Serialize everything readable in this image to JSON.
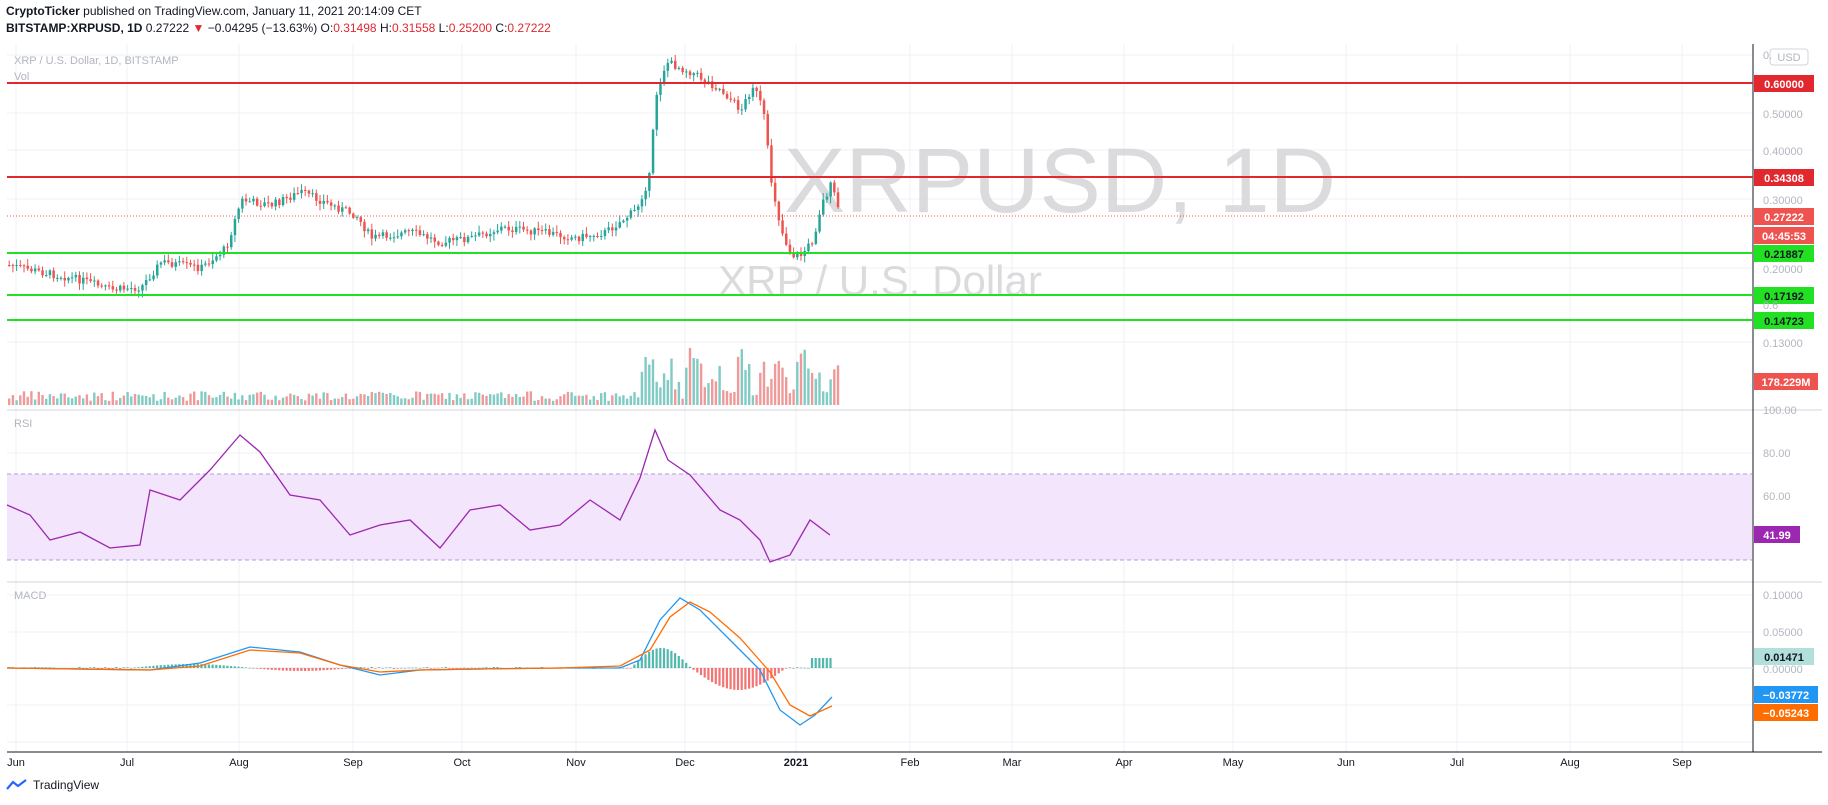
{
  "header": {
    "author": "CryptoTicker",
    "published": "published on TradingView.com, January 11, 2021 20:14:09 CET",
    "symbol": "BITSTAMP:XRPUSD, 1D",
    "last": "0.27222",
    "arrow": "▼",
    "change": "−0.04295 (−13.63%)",
    "o_label": "O:",
    "o": "0.31498",
    "h_label": "H:",
    "h": "0.31558",
    "l_label": "L:",
    "l": "0.25200",
    "c_label": "C:",
    "c": "0.27222"
  },
  "pane_main": {
    "legend": "XRP / U.S. Dollar, 1D, BITSTAMP",
    "vol_label": "Vol",
    "watermark": "XRPUSD, 1D",
    "watermark_sub": "XRP / U.S. Dollar",
    "currency_button": "USD",
    "axis_ticks": [
      "0.50000",
      "0.40000",
      "0.30000",
      "0.20000",
      "0.13000",
      "0.6",
      "0.18000"
    ],
    "top_tick": "0.",
    "price_badges": [
      {
        "label": "0.60000",
        "color": "#e0282e",
        "level": 0.6
      },
      {
        "label": "0.34308",
        "color": "#e0282e",
        "level": 0.34308
      },
      {
        "label": "0.27222",
        "color": "#ef5350",
        "level": 0.27222
      },
      {
        "label": "04:45:53",
        "color": "#ef5350"
      },
      {
        "label": "0.21887",
        "color": "#22e122",
        "level": 0.21887
      },
      {
        "label": "0.17192",
        "color": "#22e122",
        "level": 0.17192
      },
      {
        "label": "0.14723",
        "color": "#22e122",
        "level": 0.14723
      }
    ],
    "volume_badge": "178.229M",
    "colors": {
      "resistance": "#e0282e",
      "support": "#22e122",
      "up": "#26a69a",
      "down": "#ef5350"
    }
  },
  "pane_rsi": {
    "label": "RSI",
    "axis_ticks": [
      "100.00",
      "80.00",
      "60.00"
    ],
    "value": "41.99",
    "band_color": "#f3e5fb",
    "line_color": "#9c27b0"
  },
  "pane_macd": {
    "label": "MACD",
    "axis_ticks": [
      "0.10000",
      "0.05000",
      "0.00000"
    ],
    "hist_value": "0.01471",
    "macd_value": "−0.03772",
    "signal_value": "−0.05243",
    "macd_color": "#2196f3",
    "signal_color": "#ff6d00"
  },
  "time_axis": [
    "Jun",
    "Jul",
    "Aug",
    "Sep",
    "Oct",
    "Nov",
    "Dec",
    "2021",
    "Feb",
    "Mar",
    "Apr",
    "May",
    "Jun",
    "Jul",
    "Aug",
    "Sep"
  ],
  "footer": {
    "brand": "TradingView"
  }
}
